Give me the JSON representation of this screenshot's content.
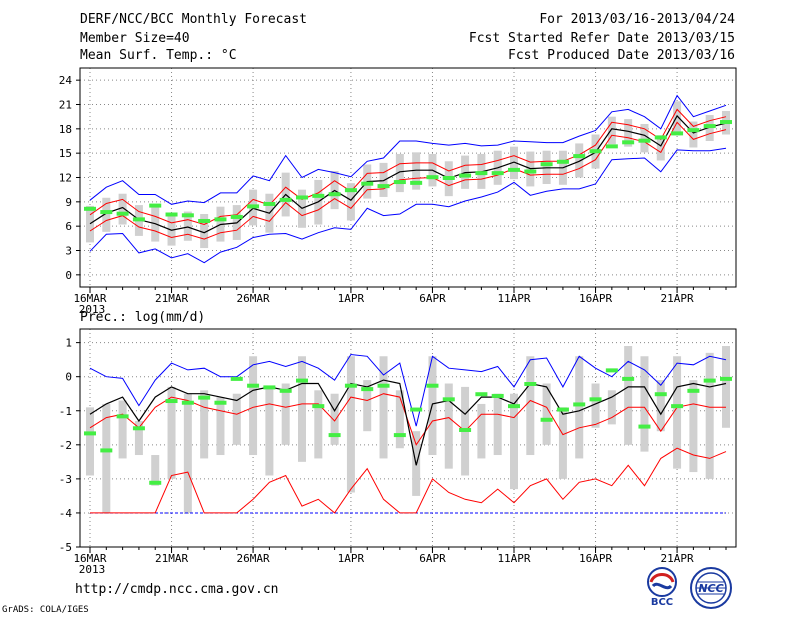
{
  "header": {
    "title": "DERF/NCC/BCC Monthly Forecast",
    "member_size": "Member Size=40",
    "variable": "Mean Surf. Temp.: °C",
    "period": "For 2013/03/16-2013/04/24",
    "started": "Fcst Started Refer Date 2013/03/15",
    "produced": "Fcst Produced Date 2013/03/16"
  },
  "precip_title": "Prec.: log(mm/d)",
  "footer": {
    "url": "http://cmdp.ncc.cma.gov.cn",
    "software": "GrADS: COLA/IGES",
    "logo_bcc": "BCC",
    "logo_ncc": "NCC"
  },
  "colors": {
    "max_min": "#0000ff",
    "spread": "#ff0000",
    "mean": "#000000",
    "box": "#d0d0d0",
    "climatology": "#44ee44",
    "grid": "#888888"
  },
  "chart_data": [
    {
      "type": "box-line",
      "title": "Mean Surf. Temp.: °C",
      "days": 40,
      "x_tick_labels": [
        "16MAR",
        "21MAR",
        "26MAR",
        "1APR",
        "6APR",
        "11APR",
        "16APR",
        "21APR"
      ],
      "x_tick_day_index": [
        0,
        5,
        10,
        16,
        21,
        26,
        31,
        36
      ],
      "x_year_label": "2013",
      "ylim": [
        -1.5,
        25.5
      ],
      "y_ticks": [
        0,
        3,
        6,
        9,
        12,
        15,
        18,
        21,
        24
      ],
      "max": [
        9.2,
        10.8,
        11.6,
        9.9,
        9.9,
        8.7,
        9.1,
        8.9,
        10.1,
        10.1,
        12.2,
        11.6,
        14.7,
        12.0,
        13.0,
        12.6,
        12.1,
        14.0,
        14.4,
        16.5,
        16.5,
        16.2,
        16.0,
        16.2,
        15.9,
        16.0,
        16.5,
        16.4,
        16.3,
        16.3,
        17.1,
        17.8,
        20.1,
        20.4,
        19.5,
        18.0,
        22.1,
        19.5,
        20.2,
        20.9
      ],
      "upper": [
        7.4,
        8.8,
        9.3,
        7.8,
        7.2,
        6.4,
        6.8,
        6.2,
        7.2,
        7.4,
        9.3,
        8.6,
        10.8,
        9.3,
        10.1,
        11.6,
        10.3,
        12.5,
        12.6,
        13.7,
        13.8,
        13.8,
        12.8,
        13.5,
        13.6,
        14.1,
        14.7,
        13.9,
        14.0,
        14.0,
        14.8,
        16.0,
        18.8,
        18.5,
        18.0,
        16.7,
        20.4,
        18.3,
        19.0,
        19.5
      ],
      "mean": [
        6.3,
        7.6,
        8.3,
        6.8,
        6.3,
        5.5,
        5.9,
        5.2,
        6.2,
        6.4,
        8.2,
        7.6,
        9.9,
        8.2,
        9.0,
        10.4,
        9.2,
        11.5,
        11.6,
        12.7,
        12.9,
        12.9,
        11.9,
        12.6,
        12.7,
        13.2,
        13.9,
        13.1,
        13.2,
        13.2,
        14.0,
        15.1,
        18.0,
        17.7,
        17.2,
        15.9,
        19.6,
        17.5,
        18.2,
        18.7
      ],
      "lower": [
        5.4,
        6.7,
        7.3,
        5.9,
        5.4,
        4.6,
        5.0,
        4.4,
        5.2,
        5.5,
        7.2,
        6.6,
        8.9,
        7.3,
        8.0,
        9.4,
        8.2,
        10.5,
        10.6,
        11.7,
        11.9,
        12.0,
        11.0,
        11.7,
        11.8,
        12.3,
        13.1,
        12.3,
        12.4,
        12.4,
        13.1,
        14.2,
        17.2,
        16.9,
        16.4,
        15.1,
        18.8,
        16.7,
        17.4,
        17.9
      ],
      "min": [
        2.9,
        5.0,
        5.1,
        2.7,
        3.2,
        2.1,
        2.6,
        1.5,
        2.8,
        3.4,
        4.6,
        5.0,
        5.1,
        4.4,
        5.2,
        5.8,
        5.6,
        8.2,
        7.3,
        7.5,
        8.7,
        8.7,
        8.4,
        9.1,
        9.6,
        10.2,
        11.4,
        9.8,
        10.3,
        10.6,
        10.6,
        11.2,
        14.2,
        14.3,
        14.4,
        12.7,
        15.4,
        15.3,
        15.3,
        15.6
      ],
      "box_top": [
        8.5,
        9.5,
        10.0,
        8.6,
        8.7,
        7.3,
        7.8,
        7.5,
        8.4,
        8.6,
        10.5,
        10.0,
        12.6,
        10.5,
        11.7,
        12.8,
        11.3,
        13.6,
        13.8,
        14.9,
        15.1,
        14.9,
        14.0,
        14.7,
        14.9,
        15.3,
        15.8,
        15.2,
        15.3,
        15.3,
        16.2,
        17.3,
        19.5,
        19.2,
        18.6,
        17.2,
        21.4,
        18.9,
        19.7,
        20.2
      ],
      "box_bottom": [
        4.0,
        5.3,
        6.2,
        4.8,
        4.1,
        3.6,
        4.2,
        3.3,
        4.1,
        4.3,
        6.1,
        5.2,
        7.2,
        5.8,
        6.2,
        8.1,
        6.7,
        9.4,
        9.6,
        10.2,
        10.5,
        10.9,
        9.7,
        10.6,
        10.6,
        11.1,
        11.8,
        10.9,
        11.2,
        11.1,
        12.0,
        13.1,
        16.1,
        15.8,
        15.1,
        14.1,
        17.2,
        15.7,
        16.5,
        17.3
      ],
      "climatology": [
        8.2,
        7.8,
        7.6,
        6.9,
        8.6,
        7.5,
        7.4,
        6.7,
        6.9,
        7.2,
        8.5,
        8.8,
        9.3,
        9.6,
        9.8,
        10.0,
        10.5,
        11.3,
        11.0,
        11.5,
        11.4,
        12.1,
        12.0,
        12.3,
        12.6,
        12.6,
        13.0,
        12.8,
        13.7,
        14.0,
        14.7,
        15.3,
        15.9,
        16.4,
        16.6,
        17.0,
        17.5,
        17.9,
        18.4,
        18.9
      ]
    },
    {
      "type": "box-line",
      "title": "Prec.: log(mm/d)",
      "days": 40,
      "x_tick_labels": [
        "16MAR",
        "21MAR",
        "26MAR",
        "1APR",
        "6APR",
        "11APR",
        "16APR",
        "21APR"
      ],
      "x_tick_day_index": [
        0,
        5,
        10,
        16,
        21,
        26,
        31,
        36
      ],
      "x_year_label": "2013",
      "ylim": [
        -5,
        1.4
      ],
      "y_ticks": [
        -5,
        -4,
        -3,
        -2,
        -1,
        0,
        1
      ],
      "max": [
        0.25,
        0.0,
        -0.05,
        -0.85,
        -0.1,
        0.4,
        0.2,
        0.25,
        0.0,
        0.0,
        0.35,
        0.45,
        0.3,
        0.45,
        0.25,
        -0.1,
        0.65,
        0.6,
        0.05,
        0.4,
        -1.45,
        0.6,
        0.25,
        0.2,
        0.15,
        0.3,
        -0.3,
        0.5,
        0.55,
        -0.3,
        0.6,
        0.25,
        0.0,
        0.45,
        0.2,
        -0.25,
        0.4,
        0.35,
        0.6,
        0.5
      ],
      "upper": [
        -1.5,
        -1.2,
        -1.1,
        -1.5,
        -0.9,
        -0.6,
        -0.7,
        -0.9,
        -1.0,
        -1.1,
        -0.9,
        -0.8,
        -0.9,
        -0.8,
        -0.8,
        -1.3,
        -0.6,
        -0.7,
        -0.5,
        -0.6,
        -2.0,
        -1.3,
        -1.2,
        -1.6,
        -1.1,
        -1.1,
        -1.2,
        -0.7,
        -0.9,
        -1.7,
        -1.5,
        -1.4,
        -1.2,
        -0.9,
        -0.9,
        -1.6,
        -0.9,
        -0.8,
        -0.9,
        -0.9
      ],
      "mean": [
        -1.1,
        -0.8,
        -0.6,
        -1.3,
        -0.6,
        -0.3,
        -0.5,
        -0.5,
        -0.6,
        -0.7,
        -0.4,
        -0.3,
        -0.4,
        -0.2,
        -0.2,
        -1.0,
        -0.2,
        -0.3,
        -0.1,
        -0.2,
        -2.6,
        -0.8,
        -0.7,
        -1.1,
        -0.6,
        -0.6,
        -0.8,
        -0.2,
        -0.3,
        -1.1,
        -1.0,
        -0.8,
        -0.6,
        -0.3,
        -0.3,
        -1.1,
        -0.3,
        -0.2,
        -0.3,
        -0.2
      ],
      "lower": [
        -4.0,
        -4.0,
        -4.0,
        -4.0,
        -4.0,
        -2.9,
        -2.8,
        -4.0,
        -4.0,
        -4.0,
        -3.6,
        -3.1,
        -2.9,
        -3.8,
        -3.6,
        -4.0,
        -3.3,
        -2.7,
        -3.6,
        -4.0,
        -4.0,
        -3.0,
        -3.4,
        -3.6,
        -3.7,
        -3.3,
        -3.7,
        -3.2,
        -3.0,
        -3.6,
        -3.1,
        -3.0,
        -3.2,
        -2.6,
        -3.2,
        -2.4,
        -2.1,
        -2.3,
        -2.4,
        -2.2
      ],
      "min": [
        -4.0,
        -4.0,
        -4.0,
        -4.0,
        -4.0,
        -4.0,
        -4.0,
        -4.0,
        -4.0,
        -4.0,
        -4.0,
        -4.0,
        -4.0,
        -4.0,
        -4.0,
        -4.0,
        -4.0,
        -4.0,
        -4.0,
        -4.0,
        -4.0,
        -4.0,
        -4.0,
        -4.0,
        -4.0,
        -4.0,
        -4.0,
        -4.0,
        -4.0,
        -4.0,
        -4.0,
        -4.0,
        -4.0,
        -4.0,
        -4.0,
        -4.0,
        -4.0,
        -4.0,
        -4.0,
        -4.0
      ],
      "box_top": [
        -0.9,
        -0.8,
        -0.7,
        -1.3,
        -2.3,
        -0.3,
        -0.5,
        -0.4,
        -0.6,
        -0.5,
        0.6,
        -0.3,
        -0.2,
        0.6,
        -0.4,
        -0.5,
        0.6,
        -0.1,
        0.6,
        -0.4,
        -1.6,
        0.6,
        -0.2,
        -0.3,
        -0.8,
        -0.5,
        -0.5,
        0.6,
        -0.2,
        -0.9,
        0.6,
        -0.2,
        -0.4,
        0.9,
        0.6,
        -0.1,
        0.6,
        -0.1,
        0.7,
        0.9
      ],
      "box_bottom": [
        -2.9,
        -4.0,
        -2.4,
        -2.3,
        -3.2,
        -3.0,
        -4.0,
        -2.4,
        -2.3,
        -2.0,
        -2.3,
        -2.9,
        -2.0,
        -2.5,
        -2.4,
        -2.0,
        -3.4,
        -1.6,
        -2.4,
        -2.1,
        -3.5,
        -2.3,
        -2.7,
        -2.9,
        -2.4,
        -2.3,
        -3.3,
        -2.3,
        -2.0,
        -3.0,
        -2.4,
        -1.5,
        -1.4,
        -2.0,
        -2.2,
        -1.6,
        -2.7,
        -2.8,
        -3.0,
        -1.5
      ],
      "climatology": [
        -1.65,
        -2.15,
        -1.15,
        -1.5,
        -3.1,
        -0.7,
        -0.75,
        -0.6,
        -0.75,
        -0.05,
        -0.25,
        -0.3,
        -0.4,
        -0.1,
        -0.85,
        -1.7,
        -0.25,
        -0.35,
        -0.25,
        -1.7,
        -0.95,
        -0.25,
        -0.65,
        -1.55,
        -0.5,
        -0.55,
        -0.85,
        -0.2,
        -1.25,
        -0.95,
        -0.8,
        -0.65,
        0.2,
        -0.05,
        -1.45,
        -0.5,
        -0.85,
        -0.4,
        -0.1,
        -0.05
      ]
    }
  ]
}
